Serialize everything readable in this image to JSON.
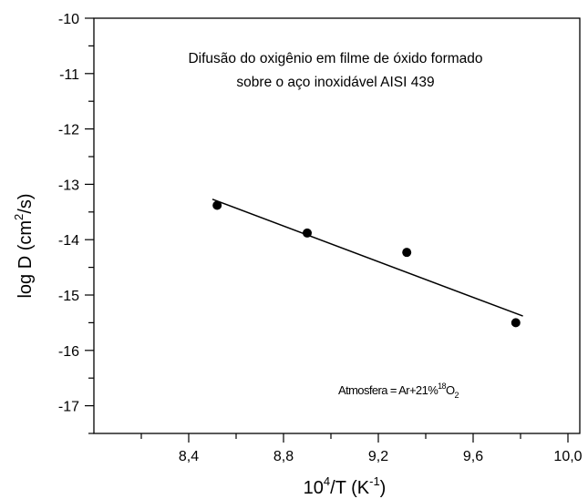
{
  "chart_data": {
    "type": "scatter",
    "title_line1": "Difusão do oxigênio em filme de óxido formado",
    "title_line2": "sobre o aço inoxidável AISI 439",
    "xlabel": {
      "base": "10",
      "sup1": "4",
      "mid": "/T  (K",
      "sup2": "-1",
      "end": ")"
    },
    "ylabel": {
      "pre": "log D (cm",
      "sup": "2",
      "post": "/s)"
    },
    "annotation": {
      "pre": "Atmosfera = Ar+21%",
      "sup": "18",
      "mid": "O",
      "sub": "2"
    },
    "xlim": [
      8.0,
      10.05
    ],
    "ylim": [
      -17.5,
      -10.0
    ],
    "xticks": [
      8.4,
      8.8,
      9.2,
      9.6,
      10.0
    ],
    "xtick_labels": [
      "8,4",
      "8,8",
      "9,2",
      "9,6",
      "10,0"
    ],
    "yticks": [
      -10,
      -11,
      -12,
      -13,
      -14,
      -15,
      -16,
      -17
    ],
    "ytick_labels": [
      "-10",
      "-11",
      "-12",
      "-13",
      "-14",
      "-15",
      "-16",
      "-17"
    ],
    "points": [
      {
        "x": 8.52,
        "y": -13.38
      },
      {
        "x": 8.9,
        "y": -13.88
      },
      {
        "x": 9.32,
        "y": -14.23
      },
      {
        "x": 9.78,
        "y": -15.5
      }
    ],
    "fit_line": {
      "x": [
        8.5,
        9.81
      ],
      "y": [
        -13.27,
        -15.38
      ]
    },
    "grid": false,
    "colors": {
      "points": "#000000",
      "line": "#000000",
      "axes": "#000000"
    }
  }
}
